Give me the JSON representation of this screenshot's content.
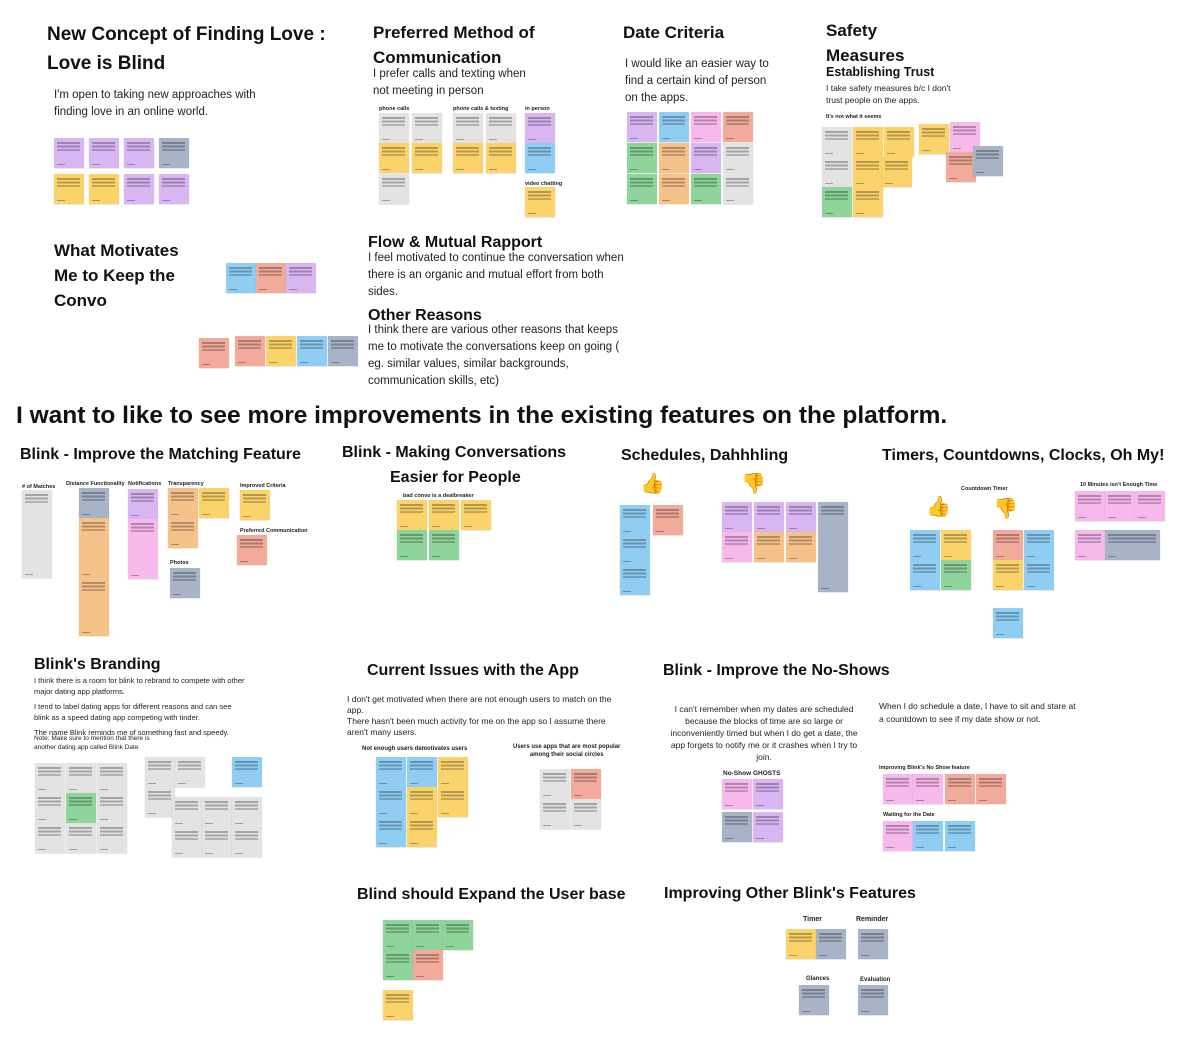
{
  "headline": "I want to like to  see more improvements in the existing features on the platform.",
  "sections": {
    "love_is_blind": {
      "title_line1": "New Concept of Finding Love :",
      "title_line2": "Love is Blind",
      "body_line1": "I'm open to taking new approaches with",
      "body_line2": "finding love in an online world."
    },
    "communication": {
      "title_line1": "Preferred Method of",
      "title_line2": "Communication",
      "body_line1": "I prefer calls and texting when",
      "body_line2": "not meeting in person",
      "labels": [
        "phone calls",
        "phone calls & texting",
        "in person",
        "video chatting"
      ]
    },
    "date_criteria": {
      "title": "Date Criteria",
      "body_line1": "I would like an easier way to",
      "body_line2": "find a certain kind of person",
      "body_line3": "on the apps."
    },
    "safety": {
      "title_line1": "Safety",
      "title_line2": "Measures",
      "subtitle": "Establishing Trust",
      "body_line1": "I take safety measures b/c I don't",
      "body_line2": "trust people on the apps.",
      "label": "It's not what it seems"
    },
    "motivates": {
      "title_line1": "What Motivates",
      "title_line2": "Me to Keep the",
      "title_line3": "Convo"
    },
    "flow": {
      "title": "Flow & Mutual Rapport",
      "body_line1": "I feel motivated to continue the conversation when",
      "body_line2": "there is an organic and mutual effort from both",
      "body_line3": "sides."
    },
    "other_reasons": {
      "title": "Other Reasons",
      "body_line1": "I think there are various other reasons that keeps",
      "body_line2": "me to motivate the conversations keep on going (",
      "body_line3": "eg. similar values, similar backgrounds,",
      "body_line4": "communication skills, etc)"
    },
    "matching": {
      "title": "Blink - Improve the Matching Feature",
      "labels": [
        "# of Matches",
        "Distance Functionality",
        "Notifications",
        "Transparency",
        "Improved Criteria",
        "Preferred Communication",
        "Photos"
      ]
    },
    "conversations": {
      "title_line1": "Blink - Making Conversations",
      "title_line2": "Easier for People",
      "label": "bad convo is a  dealbreaker"
    },
    "schedules": {
      "title": "Schedules, Dahhhling"
    },
    "timers": {
      "title": "Timers, Countdowns, Clocks, Oh My!",
      "label1": "Countdown Timer",
      "label2": "10 Minutes isn't Enough Time"
    },
    "branding": {
      "title": "Blink's Branding",
      "body_line1": "I think there is a room for blink to rebrand to compete with other",
      "body_line2": "major dating app platforms.",
      "body_line3": "I tend to label  dating apps for different reasons and can see",
      "body_line4": "blink as a speed dating app competing with tinder.",
      "body_line5": "The name  Blink reminds me of something fast and speedy.",
      "note_line1": "Note: Make sure to mention that there is",
      "note_line2": "another dating app called Blink Date"
    },
    "issues": {
      "title": "Current Issues with the App",
      "body_line1": "I don't get motivated when there are not enough users to match on the",
      "body_line2": "app.",
      "body_line3": "There hasn't been much activity for me on the app so I assume there",
      "body_line4": "aren't many users.",
      "label1": "Not enough users demotivates users",
      "label2_line1": "Users use apps that are most popular",
      "label2_line2": "among their social circles"
    },
    "noshows": {
      "title": "Blink - Improve the No-Shows",
      "left_line1": "I can't remember when my dates are scheduled",
      "left_line2": "because the blocks of time are so large or",
      "left_line3": "inconveniently timed but when I do get a date, the",
      "left_line4": "app forgets to notify me or it crashes when I try to",
      "left_line5": "join.",
      "right_line1": "When I do schedule a date, I have to sit and stare at",
      "right_line2": "a countdown to see if my date show or not.",
      "label1": "No-Show GHOSTS",
      "label2": "Improving Blink's No Show feature",
      "label3": "Waiting for the Date"
    },
    "expand": {
      "title": "Blind should Expand the User base"
    },
    "other_features": {
      "title": "Improving Other Blink's Features",
      "labels": [
        "Timer",
        "Reminder",
        "Glances",
        "Evaluation"
      ]
    }
  },
  "icons": {
    "thumbs_up": "thumbs-up-icon",
    "thumbs_down": "thumbs-down-icon"
  },
  "colors": {
    "purple": "#d9b6f2",
    "yellow": "#fad46b",
    "blue": "#8fcdf2",
    "red": "#f2aa9b",
    "pink": "#f7b8ec",
    "green": "#8fd49b",
    "gray": "#e3e3e3",
    "slate": "#a7b3c6",
    "orange": "#f5c28a"
  }
}
